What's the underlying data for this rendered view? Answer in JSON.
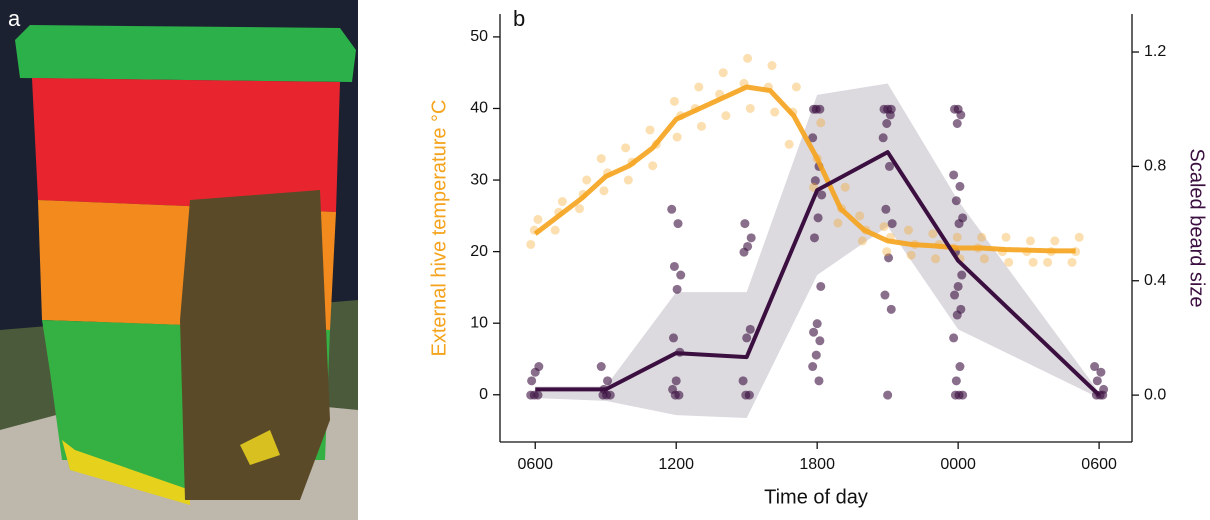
{
  "photo": {
    "panel_label": "a"
  },
  "chart_data": {
    "type": "combo",
    "panel_label": "b",
    "x_label": "Time of day",
    "y_label": "External hive temperature °C",
    "y2_label": "Scaled beard size",
    "xlim": [
      4.5,
      31.4
    ],
    "xticks": [
      {
        "value": 6,
        "label": "0600"
      },
      {
        "value": 12,
        "label": "1200"
      },
      {
        "value": 18,
        "label": "1800"
      },
      {
        "value": 24,
        "label": "0000"
      },
      {
        "value": 30,
        "label": "0600"
      }
    ],
    "ylim": [
      -6.6,
      53.2
    ],
    "yticks": [
      0,
      10,
      20,
      30,
      40,
      50
    ],
    "y2lim": [
      -0.164,
      1.333
    ],
    "y2ticks": [
      {
        "value": 0,
        "label": "0.0"
      },
      0.4,
      0.8,
      1.2
    ],
    "y_color": "#f5a31c",
    "y2_color": "#3b0f3f",
    "series": [
      {
        "type": "band",
        "axis": "y2",
        "color": "#dcd9df",
        "x": [
          6,
          9,
          12,
          15,
          18,
          21,
          24,
          30
        ],
        "upper": [
          0.03,
          0.03,
          0.36,
          0.36,
          1.05,
          1.09,
          0.68,
          0.01
        ],
        "lower": [
          -0.01,
          -0.02,
          -0.07,
          -0.08,
          0.42,
          0.59,
          0.23,
          -0.01
        ]
      },
      {
        "type": "scatter",
        "axis": "y2",
        "color": "#3b0f3f",
        "x": [
          6,
          6,
          6,
          6,
          6,
          6,
          9,
          9,
          9,
          9,
          9,
          9,
          12,
          12,
          12,
          12,
          12,
          12,
          12,
          12,
          12,
          12,
          12,
          15,
          15,
          15,
          15,
          15,
          15,
          15,
          15,
          15,
          18,
          18,
          18,
          18,
          18,
          18,
          18,
          18,
          18,
          18,
          18,
          18,
          18,
          18,
          18,
          18,
          21,
          21,
          21,
          21,
          21,
          21,
          21,
          21,
          21,
          21,
          21,
          21,
          21,
          24,
          24,
          24,
          24,
          24,
          24,
          24,
          24,
          24,
          24,
          24,
          24,
          24,
          24,
          24,
          24,
          24,
          24,
          24,
          24,
          24,
          30,
          30,
          30,
          30,
          30,
          30,
          30
        ],
        "values": [
          0,
          0,
          0,
          0.05,
          0.08,
          0.1,
          0,
          0,
          0,
          0.02,
          0.05,
          0.1,
          0,
          0,
          0.02,
          0.05,
          0.15,
          0.2,
          0.37,
          0.42,
          0.45,
          0.6,
          0.65,
          0,
          0,
          0.05,
          0.2,
          0.23,
          0.5,
          0.52,
          0.55,
          0.6,
          0.05,
          0.1,
          0.14,
          0.19,
          0.22,
          0.25,
          0.38,
          0.55,
          0.62,
          0.7,
          0.75,
          0.8,
          0.9,
          1.0,
          1.0,
          1.0,
          0,
          0.3,
          0.35,
          0.48,
          0.6,
          0.65,
          0.8,
          0.9,
          0.95,
          0.98,
          1.0,
          1.0,
          1.0,
          0,
          0,
          0,
          0.05,
          0.1,
          0.2,
          0.28,
          0.3,
          0.35,
          0.38,
          0.42,
          0.5,
          0.6,
          0.62,
          0.68,
          0.73,
          0.77,
          0.95,
          0.98,
          1.0,
          1.0,
          0,
          0,
          0,
          0.02,
          0.05,
          0.08,
          0.1
        ]
      },
      {
        "type": "scatter",
        "axis": "y",
        "color": "#f5a31c",
        "x": [
          6,
          6,
          6,
          7,
          7,
          7,
          8,
          8,
          8,
          9,
          9,
          9,
          10,
          10,
          10,
          11,
          11,
          11,
          12,
          12,
          12,
          13,
          13,
          13,
          14,
          14,
          14,
          15,
          15,
          15,
          16,
          16,
          16,
          17,
          17,
          17,
          18,
          18,
          18,
          19,
          19,
          19,
          20,
          20,
          20,
          21,
          21,
          21,
          22,
          22,
          22,
          23,
          23,
          23,
          24,
          24,
          24,
          25,
          25,
          25,
          26,
          26,
          26,
          27,
          27,
          27,
          28,
          28,
          28,
          29,
          29,
          29
        ],
        "values": [
          21,
          23,
          24.5,
          23,
          25.5,
          27,
          26,
          28,
          30,
          28.5,
          31,
          33,
          30,
          32.5,
          34.5,
          32,
          35,
          37,
          36,
          39,
          41,
          37.5,
          40,
          43,
          39,
          42,
          45,
          40,
          43.5,
          47,
          39.5,
          43,
          46,
          35,
          39.5,
          43,
          29,
          33,
          38,
          24,
          26,
          29,
          21.5,
          23,
          25,
          20,
          22,
          23.5,
          19.5,
          21,
          23,
          19,
          21,
          22.5,
          19,
          20.5,
          22,
          19,
          20.5,
          22,
          18.5,
          20,
          22,
          18.5,
          20,
          21.5,
          18.5,
          20,
          21.5,
          18.5,
          20,
          22
        ]
      },
      {
        "type": "line",
        "axis": "y",
        "color": "#f5a31c",
        "x": [
          6,
          7,
          8,
          9,
          10,
          11,
          12,
          13,
          14,
          15,
          16,
          17,
          18,
          19,
          20,
          21,
          22,
          23,
          24,
          25,
          26,
          27,
          28,
          29
        ],
        "values": [
          22.5,
          25,
          27.5,
          30.5,
          32,
          34.5,
          38.5,
          40,
          41.5,
          43,
          42.5,
          39,
          33,
          26,
          23,
          21.5,
          21,
          20.8,
          20.5,
          20.5,
          20.3,
          20.2,
          20.1,
          20.1
        ]
      },
      {
        "type": "line",
        "axis": "y2",
        "color": "#3b0f3f",
        "x": [
          6,
          9,
          12,
          15,
          18,
          21,
          24,
          30
        ],
        "values": [
          0.02,
          0.02,
          0.147,
          0.133,
          0.717,
          0.85,
          0.47,
          0.0
        ]
      }
    ]
  }
}
